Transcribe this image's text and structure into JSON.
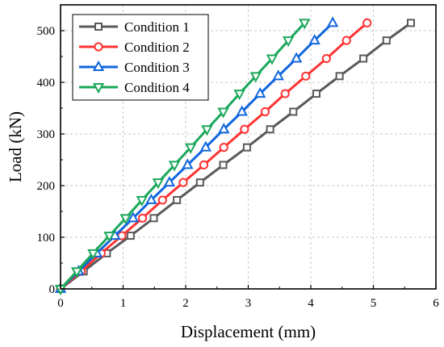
{
  "chart_data": {
    "type": "line",
    "xlabel": "Displacement (mm)",
    "ylabel": "Load (kN)",
    "xlim": [
      0,
      6
    ],
    "ylim": [
      0,
      550
    ],
    "xticks": [
      0,
      1,
      2,
      3,
      4,
      5,
      6
    ],
    "yticks": [
      0,
      100,
      200,
      300,
      400,
      500
    ],
    "grid": true,
    "legend_position": "top-left",
    "series": [
      {
        "name": "Condition 1",
        "color": "#595959",
        "marker": "square",
        "x": [
          0,
          0.37,
          0.74,
          1.12,
          1.49,
          1.86,
          2.23,
          2.6,
          2.98,
          3.35,
          3.72,
          4.09,
          4.46,
          4.84,
          5.21,
          5.6
        ],
        "y": [
          0,
          34,
          69,
          103,
          137,
          172,
          206,
          240,
          274,
          309,
          343,
          378,
          412,
          446,
          481,
          515
        ]
      },
      {
        "name": "Condition 2",
        "color": "#ff3333",
        "marker": "circle",
        "x": [
          0,
          0.33,
          0.65,
          0.98,
          1.31,
          1.63,
          1.96,
          2.29,
          2.61,
          2.94,
          3.27,
          3.59,
          3.92,
          4.25,
          4.57,
          4.9
        ],
        "y": [
          0,
          34,
          69,
          103,
          137,
          172,
          206,
          240,
          274,
          309,
          343,
          378,
          412,
          446,
          481,
          515
        ]
      },
      {
        "name": "Condition 3",
        "color": "#1166dd",
        "marker": "triangle-up",
        "x": [
          0,
          0.29,
          0.58,
          0.87,
          1.16,
          1.45,
          1.74,
          2.03,
          2.32,
          2.61,
          2.9,
          3.19,
          3.48,
          3.77,
          4.06,
          4.35
        ],
        "y": [
          0,
          34,
          69,
          103,
          137,
          172,
          206,
          240,
          274,
          309,
          343,
          378,
          412,
          446,
          481,
          515
        ]
      },
      {
        "name": "Condition 4",
        "color": "#1ba85a",
        "marker": "triangle-down",
        "x": [
          0,
          0.26,
          0.52,
          0.78,
          1.04,
          1.3,
          1.56,
          1.82,
          2.08,
          2.34,
          2.6,
          2.86,
          3.12,
          3.38,
          3.64,
          3.9
        ],
        "y": [
          0,
          34,
          69,
          103,
          137,
          172,
          206,
          240,
          274,
          309,
          343,
          378,
          412,
          446,
          481,
          515
        ]
      }
    ]
  }
}
